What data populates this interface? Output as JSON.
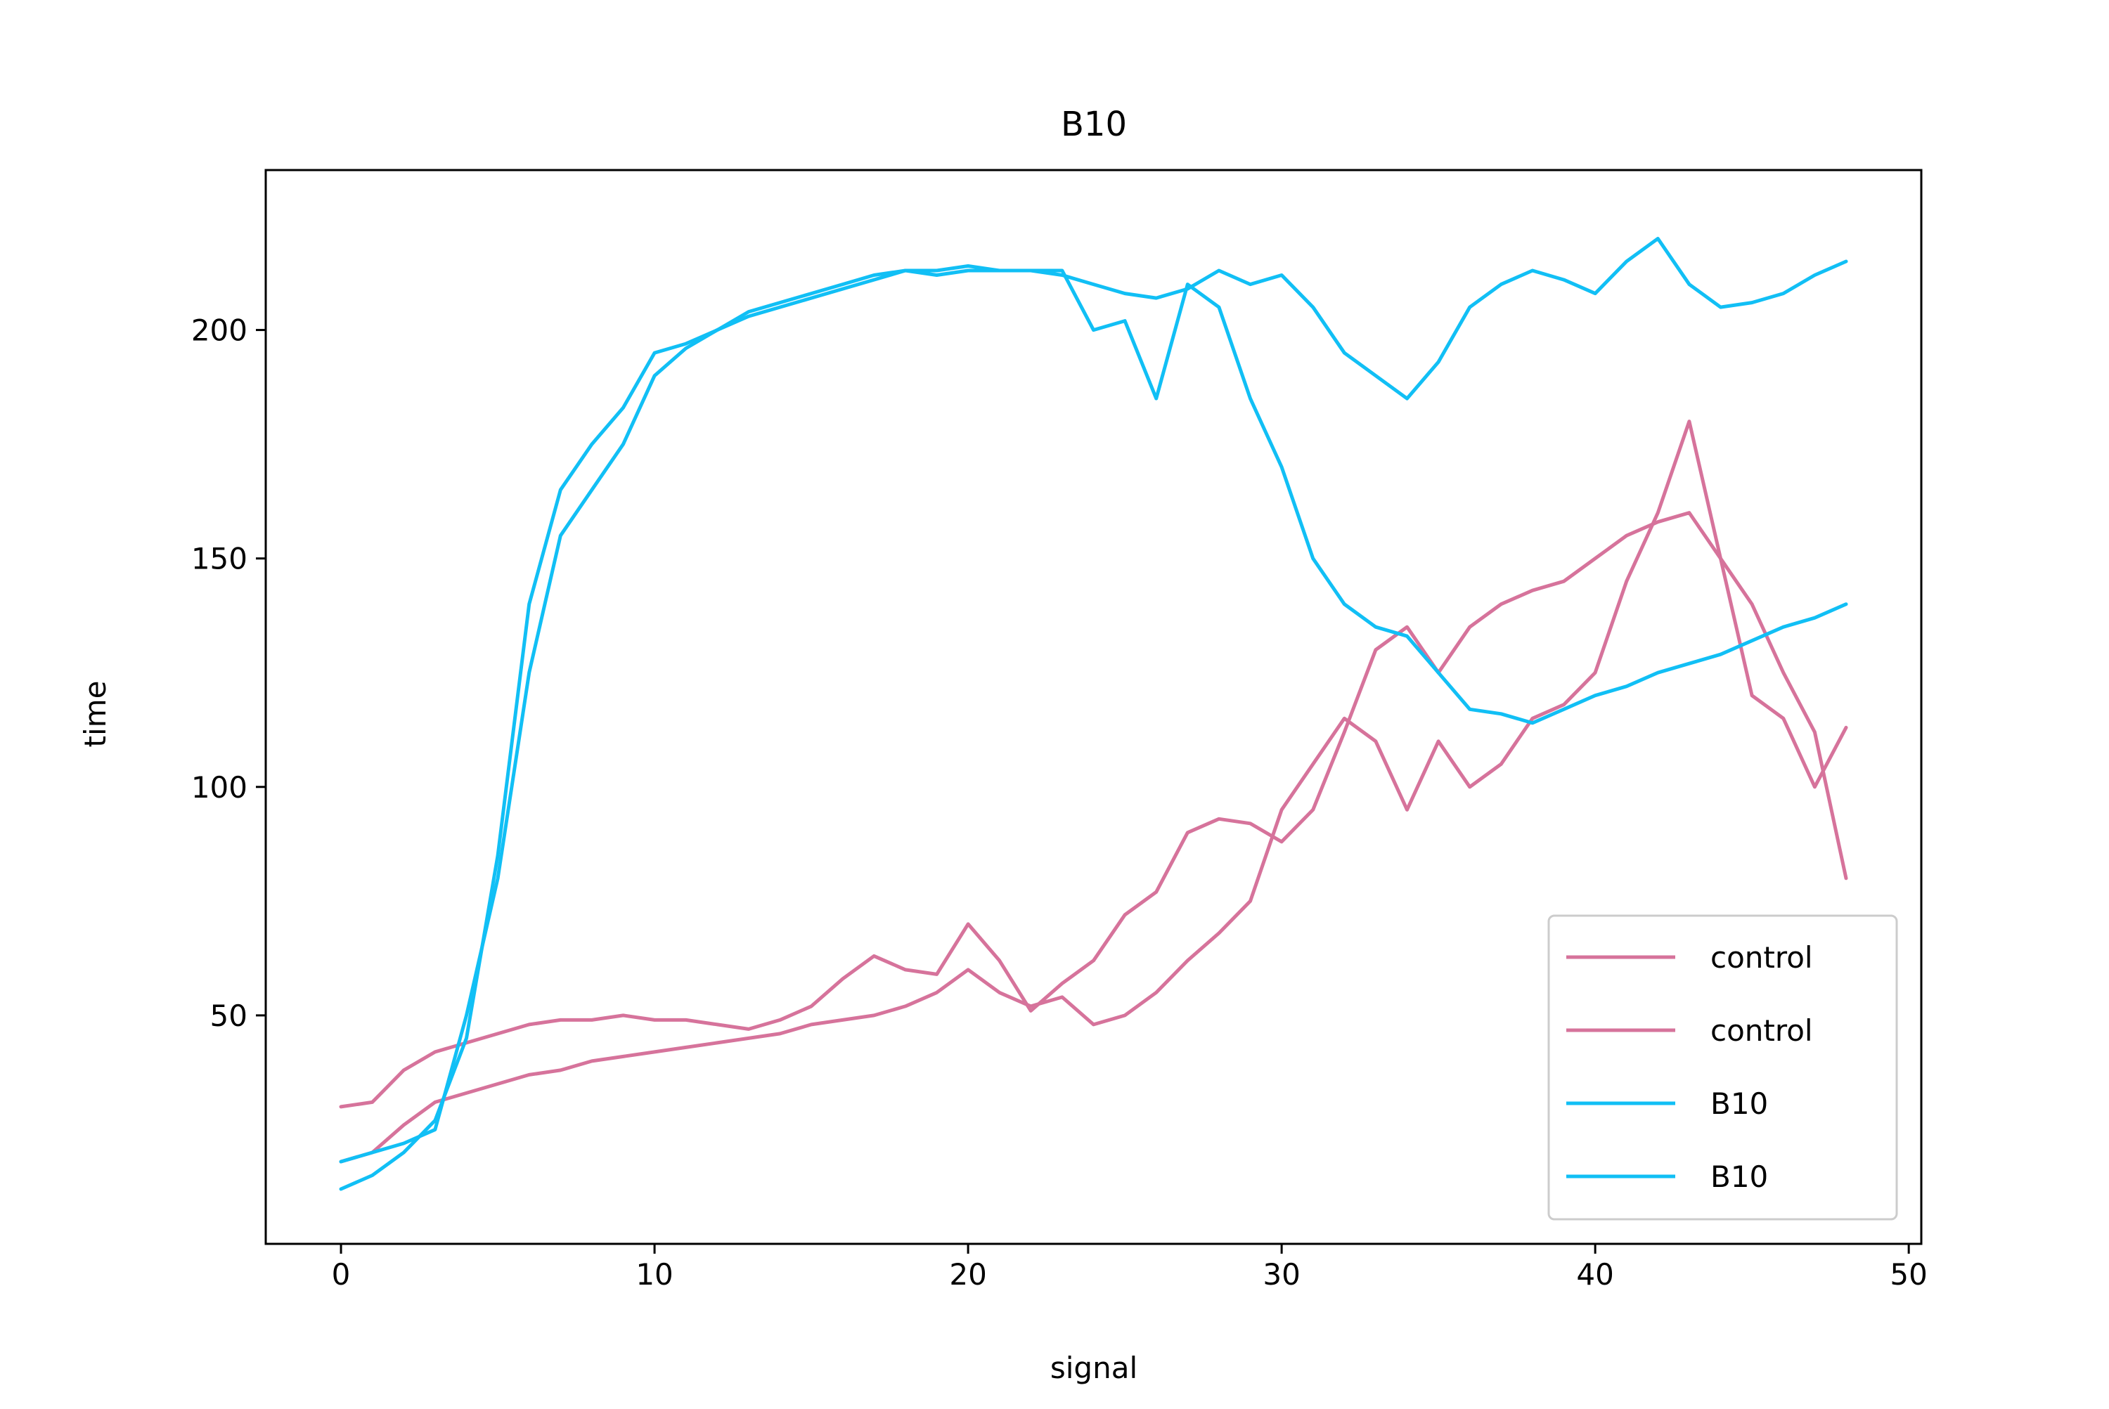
{
  "chart_data": {
    "type": "line",
    "title": "B10",
    "xlabel": "signal",
    "ylabel": "time",
    "xlim": [
      -2.4,
      50.4
    ],
    "ylim": [
      0,
      235
    ],
    "xticks": [
      0,
      10,
      20,
      30,
      40,
      50
    ],
    "yticks": [
      50,
      100,
      150,
      200
    ],
    "grid": false,
    "legend_position": "lower-right",
    "colors": {
      "control": "#d6739b",
      "B10": "#11bff5"
    },
    "series": [
      {
        "name": "control",
        "color": "#d6739b",
        "x": [
          0,
          1,
          2,
          3,
          4,
          5,
          6,
          7,
          8,
          9,
          10,
          11,
          12,
          13,
          14,
          15,
          16,
          17,
          18,
          19,
          20,
          21,
          22,
          23,
          24,
          25,
          26,
          27,
          28,
          29,
          30,
          31,
          32,
          33,
          34,
          35,
          36,
          37,
          38,
          39,
          40,
          41,
          42,
          43,
          44,
          45,
          46,
          47,
          48
        ],
        "values": [
          30,
          31,
          38,
          42,
          44,
          46,
          48,
          49,
          49,
          50,
          49,
          49,
          48,
          47,
          49,
          52,
          58,
          63,
          60,
          59,
          70,
          62,
          51,
          57,
          62,
          72,
          77,
          90,
          93,
          92,
          88,
          95,
          112,
          130,
          135,
          125,
          135,
          140,
          143,
          145,
          150,
          155,
          158,
          160,
          150,
          140,
          125,
          112,
          80
        ]
      },
      {
        "name": "control",
        "color": "#d6739b",
        "x": [
          0,
          1,
          2,
          3,
          4,
          5,
          6,
          7,
          8,
          9,
          10,
          11,
          12,
          13,
          14,
          15,
          16,
          17,
          18,
          19,
          20,
          21,
          22,
          23,
          24,
          25,
          26,
          27,
          28,
          29,
          30,
          31,
          32,
          33,
          34,
          35,
          36,
          37,
          38,
          39,
          40,
          41,
          42,
          43,
          44,
          45,
          46,
          47,
          48
        ],
        "values": [
          18,
          20,
          26,
          31,
          33,
          35,
          37,
          38,
          40,
          41,
          42,
          43,
          44,
          45,
          46,
          48,
          49,
          50,
          52,
          55,
          60,
          55,
          52,
          54,
          48,
          50,
          55,
          62,
          68,
          75,
          95,
          105,
          115,
          110,
          95,
          110,
          100,
          105,
          115,
          118,
          125,
          145,
          160,
          180,
          150,
          120,
          115,
          100,
          113
        ]
      },
      {
        "name": "B10",
        "color": "#11bff5",
        "x": [
          0,
          1,
          2,
          3,
          4,
          5,
          6,
          7,
          8,
          9,
          10,
          11,
          12,
          13,
          14,
          15,
          16,
          17,
          18,
          19,
          20,
          21,
          22,
          23,
          24,
          25,
          26,
          27,
          28,
          29,
          30,
          31,
          32,
          33,
          34,
          35,
          36,
          37,
          38,
          39,
          40,
          41,
          42,
          43,
          44,
          45,
          46,
          47,
          48
        ],
        "values": [
          12,
          15,
          20,
          27,
          45,
          85,
          140,
          165,
          175,
          183,
          195,
          197,
          200,
          203,
          205,
          207,
          209,
          211,
          213,
          212,
          213,
          213,
          213,
          213,
          200,
          202,
          185,
          210,
          205,
          185,
          170,
          150,
          140,
          135,
          133,
          125,
          117,
          116,
          114,
          117,
          120,
          122,
          125,
          127,
          129,
          132,
          135,
          137,
          140
        ]
      },
      {
        "name": "B10",
        "color": "#11bff5",
        "x": [
          0,
          1,
          2,
          3,
          4,
          5,
          6,
          7,
          8,
          9,
          10,
          11,
          12,
          13,
          14,
          15,
          16,
          17,
          18,
          19,
          20,
          21,
          22,
          23,
          24,
          25,
          26,
          27,
          28,
          29,
          30,
          31,
          32,
          33,
          34,
          35,
          36,
          37,
          38,
          39,
          40,
          41,
          42,
          43,
          44,
          45,
          46,
          47,
          48
        ],
        "values": [
          18,
          20,
          22,
          25,
          50,
          80,
          125,
          155,
          165,
          175,
          190,
          196,
          200,
          204,
          206,
          208,
          210,
          212,
          213,
          213,
          214,
          213,
          213,
          212,
          210,
          208,
          207,
          209,
          213,
          210,
          212,
          205,
          195,
          190,
          185,
          193,
          205,
          210,
          213,
          211,
          208,
          215,
          220,
          210,
          205,
          206,
          208,
          212,
          215
        ]
      }
    ]
  }
}
